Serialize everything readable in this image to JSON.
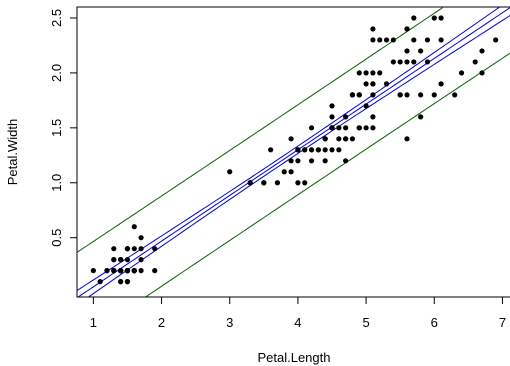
{
  "chart_data": {
    "type": "scatter",
    "title": "",
    "xlabel": "Petal.Length",
    "ylabel": "Petal.Width",
    "xlim": [
      0.76,
      7.14
    ],
    "ylim": [
      -0.04,
      2.6
    ],
    "x_ticks": [
      1,
      2,
      3,
      4,
      5,
      6,
      7
    ],
    "y_ticks": [
      0.5,
      1.0,
      1.5,
      2.0,
      2.5
    ],
    "y_tick_labels": [
      "0.5",
      "1.0",
      "1.5",
      "2.0",
      "2.5"
    ],
    "grid": false,
    "legend": "none",
    "point_color": "#000000",
    "points": [
      [
        1.4,
        0.2
      ],
      [
        1.4,
        0.2
      ],
      [
        1.3,
        0.2
      ],
      [
        1.5,
        0.2
      ],
      [
        1.4,
        0.2
      ],
      [
        1.7,
        0.4
      ],
      [
        1.4,
        0.3
      ],
      [
        1.5,
        0.2
      ],
      [
        1.4,
        0.2
      ],
      [
        1.5,
        0.1
      ],
      [
        1.5,
        0.2
      ],
      [
        1.6,
        0.2
      ],
      [
        1.4,
        0.1
      ],
      [
        1.1,
        0.1
      ],
      [
        1.2,
        0.2
      ],
      [
        1.5,
        0.4
      ],
      [
        1.3,
        0.4
      ],
      [
        1.4,
        0.3
      ],
      [
        1.7,
        0.3
      ],
      [
        1.5,
        0.3
      ],
      [
        1.7,
        0.2
      ],
      [
        1.5,
        0.4
      ],
      [
        1.0,
        0.2
      ],
      [
        1.7,
        0.5
      ],
      [
        1.9,
        0.2
      ],
      [
        1.6,
        0.2
      ],
      [
        1.6,
        0.4
      ],
      [
        1.5,
        0.2
      ],
      [
        1.4,
        0.2
      ],
      [
        1.6,
        0.2
      ],
      [
        1.6,
        0.2
      ],
      [
        1.5,
        0.4
      ],
      [
        1.5,
        0.1
      ],
      [
        1.4,
        0.2
      ],
      [
        1.5,
        0.2
      ],
      [
        1.2,
        0.2
      ],
      [
        1.3,
        0.2
      ],
      [
        1.4,
        0.1
      ],
      [
        1.3,
        0.2
      ],
      [
        1.5,
        0.2
      ],
      [
        1.3,
        0.3
      ],
      [
        1.3,
        0.3
      ],
      [
        1.3,
        0.2
      ],
      [
        1.6,
        0.6
      ],
      [
        1.9,
        0.4
      ],
      [
        1.4,
        0.3
      ],
      [
        1.6,
        0.2
      ],
      [
        1.4,
        0.2
      ],
      [
        1.5,
        0.2
      ],
      [
        1.4,
        0.2
      ],
      [
        4.7,
        1.4
      ],
      [
        4.5,
        1.5
      ],
      [
        4.9,
        1.5
      ],
      [
        4.0,
        1.3
      ],
      [
        4.6,
        1.5
      ],
      [
        4.5,
        1.3
      ],
      [
        4.7,
        1.6
      ],
      [
        3.3,
        1.0
      ],
      [
        4.6,
        1.3
      ],
      [
        3.9,
        1.4
      ],
      [
        3.5,
        1.0
      ],
      [
        4.2,
        1.5
      ],
      [
        4.0,
        1.0
      ],
      [
        4.7,
        1.4
      ],
      [
        3.6,
        1.3
      ],
      [
        4.4,
        1.4
      ],
      [
        4.5,
        1.5
      ],
      [
        4.1,
        1.0
      ],
      [
        4.5,
        1.5
      ],
      [
        3.9,
        1.1
      ],
      [
        4.8,
        1.8
      ],
      [
        4.0,
        1.3
      ],
      [
        4.9,
        1.5
      ],
      [
        4.7,
        1.2
      ],
      [
        4.3,
        1.3
      ],
      [
        4.4,
        1.4
      ],
      [
        4.8,
        1.4
      ],
      [
        5.0,
        1.7
      ],
      [
        4.5,
        1.5
      ],
      [
        3.5,
        1.0
      ],
      [
        3.8,
        1.1
      ],
      [
        3.7,
        1.0
      ],
      [
        3.9,
        1.2
      ],
      [
        5.1,
        1.6
      ],
      [
        4.5,
        1.5
      ],
      [
        4.5,
        1.6
      ],
      [
        4.7,
        1.5
      ],
      [
        4.4,
        1.3
      ],
      [
        4.1,
        1.3
      ],
      [
        4.0,
        1.3
      ],
      [
        4.4,
        1.2
      ],
      [
        4.6,
        1.4
      ],
      [
        4.0,
        1.2
      ],
      [
        3.3,
        1.0
      ],
      [
        4.2,
        1.3
      ],
      [
        4.2,
        1.2
      ],
      [
        4.2,
        1.3
      ],
      [
        4.3,
        1.3
      ],
      [
        3.0,
        1.1
      ],
      [
        4.1,
        1.3
      ],
      [
        6.0,
        2.5
      ],
      [
        5.1,
        1.9
      ],
      [
        5.9,
        2.1
      ],
      [
        5.6,
        1.8
      ],
      [
        5.8,
        2.2
      ],
      [
        6.6,
        2.1
      ],
      [
        4.5,
        1.7
      ],
      [
        6.3,
        1.8
      ],
      [
        5.8,
        1.8
      ],
      [
        6.1,
        2.5
      ],
      [
        5.1,
        2.0
      ],
      [
        5.3,
        1.9
      ],
      [
        5.5,
        2.1
      ],
      [
        5.0,
        2.0
      ],
      [
        5.1,
        2.4
      ],
      [
        5.3,
        2.3
      ],
      [
        5.5,
        1.8
      ],
      [
        6.7,
        2.2
      ],
      [
        6.9,
        2.3
      ],
      [
        5.0,
        1.5
      ],
      [
        5.7,
        2.3
      ],
      [
        4.9,
        2.0
      ],
      [
        6.7,
        2.0
      ],
      [
        4.9,
        1.8
      ],
      [
        5.7,
        2.1
      ],
      [
        6.0,
        1.8
      ],
      [
        4.8,
        1.8
      ],
      [
        4.9,
        1.8
      ],
      [
        5.6,
        2.1
      ],
      [
        5.8,
        1.6
      ],
      [
        6.1,
        1.9
      ],
      [
        6.4,
        2.0
      ],
      [
        5.6,
        2.2
      ],
      [
        5.1,
        1.5
      ],
      [
        5.6,
        1.4
      ],
      [
        6.1,
        2.3
      ],
      [
        5.6,
        2.4
      ],
      [
        5.5,
        1.8
      ],
      [
        4.8,
        1.8
      ],
      [
        5.4,
        2.1
      ],
      [
        5.6,
        2.4
      ],
      [
        5.1,
        2.3
      ],
      [
        5.1,
        1.9
      ],
      [
        5.9,
        2.3
      ],
      [
        5.7,
        2.5
      ],
      [
        5.2,
        2.3
      ],
      [
        5.0,
        1.9
      ],
      [
        5.2,
        2.0
      ],
      [
        5.4,
        2.3
      ],
      [
        5.1,
        1.8
      ]
    ],
    "fit": {
      "intercept": -0.363,
      "slope": 0.4158
    },
    "confidence_band": {
      "color": "#0000CD",
      "n": 150,
      "se": 0.2065,
      "t": 1.976,
      "mean_x": 3.758,
      "sxx": 464.33
    },
    "prediction_band": {
      "color": "#006400",
      "n": 150,
      "se": 0.2065,
      "t": 1.976,
      "mean_x": 3.758,
      "sxx": 464.33
    }
  }
}
